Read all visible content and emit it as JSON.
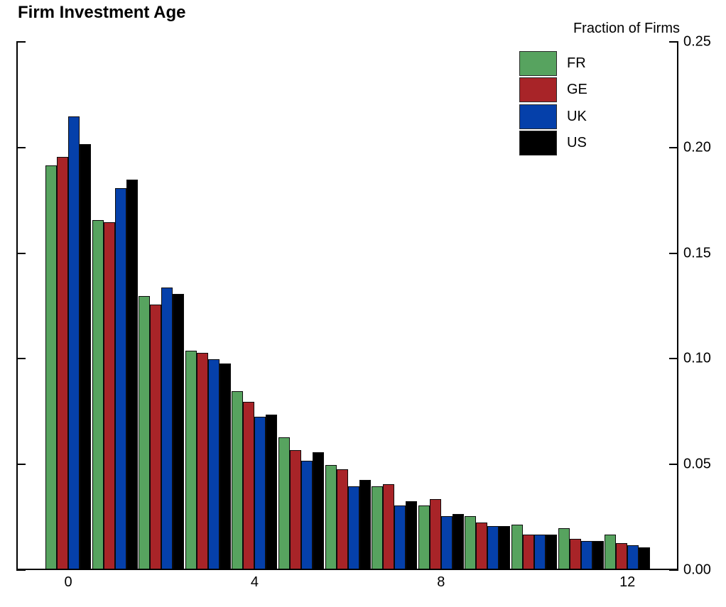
{
  "title": "Firm Investment Age",
  "axis": {
    "y_label": "Fraction of Firms",
    "y_tick_labels": [
      "0.25",
      "0.20",
      "0.15",
      "0.10",
      "0.05",
      "0.00"
    ],
    "x_tick_labels": [
      "0",
      "4",
      "8",
      "12"
    ]
  },
  "legend": {
    "items": [
      {
        "label": "FR",
        "color": "#57a35f"
      },
      {
        "label": "GE",
        "color": "#a82428"
      },
      {
        "label": "UK",
        "color": "#0540aa"
      },
      {
        "label": "US",
        "color": "#000000"
      }
    ]
  },
  "chart_data": {
    "type": "bar",
    "title": "Firm Investment Age",
    "xlabel": "",
    "ylabel": "Fraction of Firms",
    "categories": [
      0,
      1,
      2,
      3,
      4,
      5,
      6,
      7,
      8,
      9,
      10,
      11,
      12
    ],
    "series": [
      {
        "name": "FR",
        "color": "#57a35f",
        "values": [
          0.191,
          0.165,
          0.129,
          0.103,
          0.084,
          0.062,
          0.049,
          0.039,
          0.03,
          0.025,
          0.021,
          0.019,
          0.016
        ]
      },
      {
        "name": "GE",
        "color": "#a82428",
        "values": [
          0.195,
          0.164,
          0.125,
          0.102,
          0.079,
          0.056,
          0.047,
          0.04,
          0.033,
          0.022,
          0.016,
          0.014,
          0.012
        ]
      },
      {
        "name": "UK",
        "color": "#0540aa",
        "values": [
          0.214,
          0.18,
          0.133,
          0.099,
          0.072,
          0.051,
          0.039,
          0.03,
          0.025,
          0.02,
          0.016,
          0.013,
          0.011
        ]
      },
      {
        "name": "US",
        "color": "#000000",
        "values": [
          0.201,
          0.184,
          0.13,
          0.097,
          0.073,
          0.055,
          0.042,
          0.032,
          0.026,
          0.02,
          0.016,
          0.013,
          0.01
        ]
      }
    ],
    "ylim": [
      0.0,
      0.25
    ],
    "y_ticks": [
      0.25,
      0.2,
      0.15,
      0.1,
      0.05,
      0.0
    ],
    "x_ticks": [
      0,
      4,
      8,
      12
    ],
    "grid": false,
    "legend_position": "upper right",
    "y_axis_side": "right"
  }
}
